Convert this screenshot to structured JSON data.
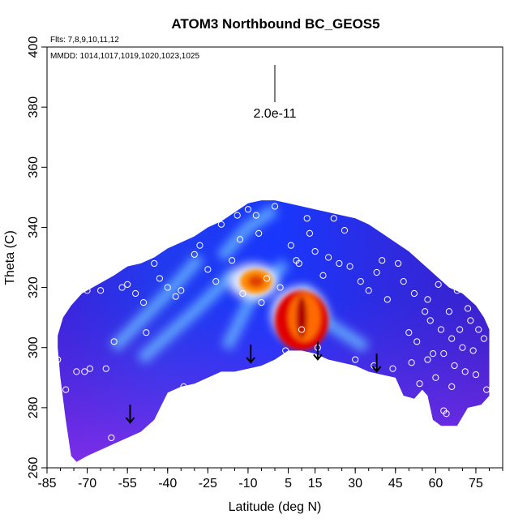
{
  "chart_data": {
    "type": "heatmap",
    "title": "ATOM3 Northbound BC_GEOS5",
    "flights_note": "Flts: 7,8,9,10,11,12",
    "dates_note": "MMDD: 1014,1017,1019,1020,1023,1025",
    "xlabel": "Latitude (deg N)",
    "ylabel": "Theta (C)",
    "xlim": [
      -85,
      85
    ],
    "ylim": [
      260,
      400
    ],
    "xticks": [
      -85,
      -70,
      -55,
      -40,
      -25,
      -10,
      5,
      15,
      30,
      45,
      60,
      75
    ],
    "yticks": [
      260,
      280,
      300,
      320,
      340,
      360,
      380,
      400
    ],
    "scale_bar_label": "2.0e-11",
    "colormap": [
      "#7a2be0",
      "#2a1fd6",
      "#1840ff",
      "#3aa0ff",
      "#e8f4ff",
      "#ffd400",
      "#ff6a00",
      "#e00000"
    ],
    "arrows_x": [
      -54,
      -9,
      16,
      38
    ],
    "region": {
      "upper_boundary": [
        [
          -81,
          304
        ],
        [
          -79,
          310
        ],
        [
          -76,
          314
        ],
        [
          -72,
          318
        ],
        [
          -66,
          321
        ],
        [
          -60,
          324
        ],
        [
          -55,
          327
        ],
        [
          -50,
          328
        ],
        [
          -45,
          330
        ],
        [
          -40,
          333
        ],
        [
          -35,
          335
        ],
        [
          -30,
          337
        ],
        [
          -25,
          340
        ],
        [
          -20,
          342
        ],
        [
          -15,
          345
        ],
        [
          -10,
          348
        ],
        [
          -5,
          349
        ],
        [
          0,
          349
        ],
        [
          5,
          348
        ],
        [
          10,
          347
        ],
        [
          15,
          346
        ],
        [
          20,
          345
        ],
        [
          25,
          344
        ],
        [
          30,
          343
        ],
        [
          35,
          341
        ],
        [
          40,
          338
        ],
        [
          45,
          335
        ],
        [
          50,
          332
        ],
        [
          55,
          328
        ],
        [
          60,
          324
        ],
        [
          65,
          320
        ],
        [
          70,
          318
        ],
        [
          75,
          314
        ],
        [
          78,
          310
        ],
        [
          80,
          306
        ]
      ],
      "lower_boundary": [
        [
          80,
          284
        ],
        [
          77,
          281
        ],
        [
          72,
          280
        ],
        [
          68,
          274
        ],
        [
          62,
          274
        ],
        [
          59,
          276
        ],
        [
          57,
          284
        ],
        [
          55,
          286
        ],
        [
          52,
          283
        ],
        [
          48,
          284
        ],
        [
          45,
          290
        ],
        [
          40,
          291
        ],
        [
          35,
          292
        ],
        [
          30,
          294
        ],
        [
          25,
          295
        ],
        [
          20,
          296
        ],
        [
          15,
          298
        ],
        [
          10,
          299
        ],
        [
          5,
          299
        ],
        [
          0,
          296
        ],
        [
          -5,
          294
        ],
        [
          -10,
          293
        ],
        [
          -15,
          292
        ],
        [
          -20,
          292
        ],
        [
          -25,
          290
        ],
        [
          -30,
          288
        ],
        [
          -35,
          287
        ],
        [
          -40,
          285
        ],
        [
          -45,
          276
        ],
        [
          -50,
          272
        ],
        [
          -55,
          270
        ],
        [
          -60,
          268
        ],
        [
          -65,
          266
        ],
        [
          -70,
          264
        ],
        [
          -74,
          262
        ],
        [
          -76,
          264
        ],
        [
          -78,
          276
        ],
        [
          -80,
          290
        ],
        [
          -81,
          300
        ]
      ]
    },
    "hotspots": [
      {
        "x": 10,
        "y": 309,
        "rx": 10,
        "ry": 10,
        "color": "#e00000"
      },
      {
        "x": 11,
        "y": 310,
        "rx": 6,
        "ry": 8,
        "color": "#ff6a00"
      },
      {
        "x": 10,
        "y": 310,
        "rx": 2,
        "ry": 7,
        "color": "#b00000"
      },
      {
        "x": -7,
        "y": 322,
        "rx": 6,
        "ry": 4,
        "color": "#ff8a00"
      },
      {
        "x": -7,
        "y": 322,
        "rx": 3,
        "ry": 2,
        "color": "#e04000"
      }
    ],
    "observations": [
      {
        "x": -81,
        "y": 296
      },
      {
        "x": -81,
        "y": 311
      },
      {
        "x": -78,
        "y": 286
      },
      {
        "x": -74,
        "y": 292
      },
      {
        "x": -71,
        "y": 292
      },
      {
        "x": -69,
        "y": 293
      },
      {
        "x": -63,
        "y": 293
      },
      {
        "x": -60,
        "y": 302
      },
      {
        "x": -61,
        "y": 270
      },
      {
        "x": -70,
        "y": 319
      },
      {
        "x": -65,
        "y": 319
      },
      {
        "x": -57,
        "y": 320
      },
      {
        "x": -55,
        "y": 321
      },
      {
        "x": -52,
        "y": 318
      },
      {
        "x": -49,
        "y": 315
      },
      {
        "x": -48,
        "y": 305
      },
      {
        "x": -45,
        "y": 328
      },
      {
        "x": -43,
        "y": 323
      },
      {
        "x": -40,
        "y": 320
      },
      {
        "x": -37,
        "y": 317
      },
      {
        "x": -35,
        "y": 319
      },
      {
        "x": -34,
        "y": 287
      },
      {
        "x": -30,
        "y": 331
      },
      {
        "x": -28,
        "y": 334
      },
      {
        "x": -25,
        "y": 326
      },
      {
        "x": -22,
        "y": 322
      },
      {
        "x": -20,
        "y": 341
      },
      {
        "x": -16,
        "y": 329
      },
      {
        "x": -14,
        "y": 344
      },
      {
        "x": -13,
        "y": 336
      },
      {
        "x": -12,
        "y": 318
      },
      {
        "x": -10,
        "y": 346
      },
      {
        "x": -7,
        "y": 344
      },
      {
        "x": -6,
        "y": 338
      },
      {
        "x": -5,
        "y": 315
      },
      {
        "x": -3,
        "y": 323
      },
      {
        "x": 0,
        "y": 347
      },
      {
        "x": 2,
        "y": 320
      },
      {
        "x": 4,
        "y": 299
      },
      {
        "x": 6,
        "y": 334
      },
      {
        "x": 8,
        "y": 329
      },
      {
        "x": 9,
        "y": 328
      },
      {
        "x": 10,
        "y": 306
      },
      {
        "x": 12,
        "y": 343
      },
      {
        "x": 13,
        "y": 338
      },
      {
        "x": 15,
        "y": 332
      },
      {
        "x": 16,
        "y": 300
      },
      {
        "x": 18,
        "y": 324
      },
      {
        "x": 20,
        "y": 330
      },
      {
        "x": 22,
        "y": 343
      },
      {
        "x": 24,
        "y": 328
      },
      {
        "x": 26,
        "y": 339
      },
      {
        "x": 28,
        "y": 327
      },
      {
        "x": 30,
        "y": 296
      },
      {
        "x": 32,
        "y": 322
      },
      {
        "x": 35,
        "y": 319
      },
      {
        "x": 37,
        "y": 294
      },
      {
        "x": 38,
        "y": 325
      },
      {
        "x": 40,
        "y": 329
      },
      {
        "x": 42,
        "y": 316
      },
      {
        "x": 44,
        "y": 293
      },
      {
        "x": 46,
        "y": 328
      },
      {
        "x": 48,
        "y": 322
      },
      {
        "x": 50,
        "y": 305
      },
      {
        "x": 52,
        "y": 318
      },
      {
        "x": 53,
        "y": 302
      },
      {
        "x": 55,
        "y": 332
      },
      {
        "x": 56,
        "y": 312
      },
      {
        "x": 57,
        "y": 316
      },
      {
        "x": 58,
        "y": 309
      },
      {
        "x": 59,
        "y": 298
      },
      {
        "x": 60,
        "y": 290
      },
      {
        "x": 61,
        "y": 321
      },
      {
        "x": 62,
        "y": 306
      },
      {
        "x": 63,
        "y": 298
      },
      {
        "x": 64,
        "y": 278
      },
      {
        "x": 65,
        "y": 312
      },
      {
        "x": 66,
        "y": 303
      },
      {
        "x": 67,
        "y": 294
      },
      {
        "x": 68,
        "y": 319
      },
      {
        "x": 69,
        "y": 306
      },
      {
        "x": 70,
        "y": 300
      },
      {
        "x": 71,
        "y": 292
      },
      {
        "x": 72,
        "y": 313
      },
      {
        "x": 73,
        "y": 309
      },
      {
        "x": 74,
        "y": 299
      },
      {
        "x": 75,
        "y": 291
      },
      {
        "x": 76,
        "y": 306
      },
      {
        "x": 77,
        "y": 317
      },
      {
        "x": 78,
        "y": 303
      },
      {
        "x": 79,
        "y": 286
      },
      {
        "x": 57,
        "y": 296
      },
      {
        "x": 54,
        "y": 288
      },
      {
        "x": 51,
        "y": 295
      },
      {
        "x": 63,
        "y": 279
      },
      {
        "x": 66,
        "y": 287
      }
    ]
  }
}
